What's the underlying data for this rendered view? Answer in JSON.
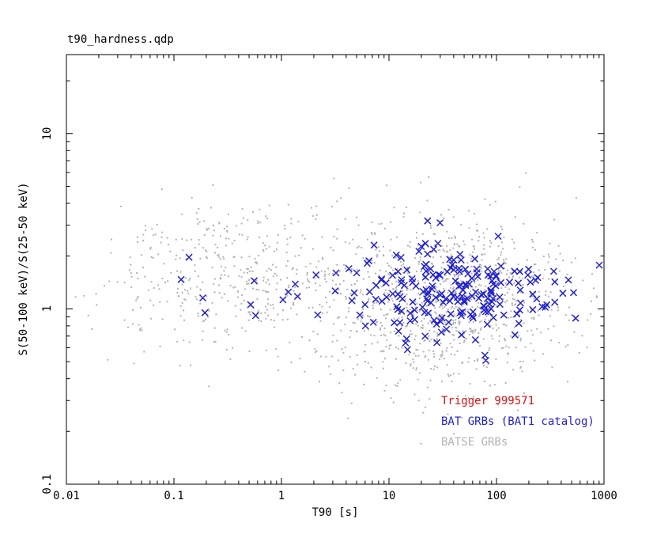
{
  "window": {
    "background": "#ffffff"
  },
  "chart_data": {
    "type": "scatter",
    "title": "t90_hardness.qdp",
    "xlabel": "T90 [s]",
    "ylabel": "S(50-100 keV)/S(25-50 keV)",
    "xscale": "log",
    "yscale": "log",
    "xlim": [
      0.01,
      1000
    ],
    "ylim": [
      0.1,
      28.2
    ],
    "x_ticks": [
      0.01,
      0.1,
      1,
      10,
      100,
      1000
    ],
    "x_tick_labels": [
      "0.01",
      "0.1",
      "1",
      "10",
      "100",
      "1000"
    ],
    "y_ticks": [
      0.1,
      1,
      10
    ],
    "y_tick_labels": [
      "0.1",
      "1",
      "10"
    ],
    "grid": false,
    "frame_color": "#000000",
    "legend_position": "lower-right-text-only",
    "legend": [
      {
        "label": "Trigger 999571",
        "color": "#dd1111"
      },
      {
        "label": "BAT GRBs (BAT1 catalog)",
        "color": "#2222cc"
      },
      {
        "label": "BATSE GRBs",
        "color": "#b3b3b3"
      }
    ],
    "series": [
      {
        "name": "BATSE GRBs",
        "color": "#b3b3b3",
        "marker": "dot",
        "marker_size": 2,
        "seed": 101,
        "clusters": [
          {
            "count": 420,
            "log10_t90_mean": -0.45,
            "log10_t90_sigma": 0.55,
            "log10_ratio_mean": 0.2,
            "log10_ratio_sigma": 0.22
          },
          {
            "count": 1050,
            "log10_t90_mean": 1.5,
            "log10_t90_sigma": 0.58,
            "log10_ratio_mean": 0.04,
            "log10_ratio_sigma": 0.25
          }
        ]
      },
      {
        "name": "BAT GRBs (BAT1 catalog)",
        "color": "#2222cc",
        "marker": "x",
        "marker_size": 8,
        "seed": 202,
        "clusters": [
          {
            "count": 12,
            "log10_t90_mean": -0.55,
            "log10_t90_sigma": 0.45,
            "log10_ratio_mean": 0.14,
            "log10_ratio_sigma": 0.1
          },
          {
            "count": 205,
            "log10_t90_mean": 1.55,
            "log10_t90_sigma": 0.52,
            "log10_ratio_mean": 0.1,
            "log10_ratio_sigma": 0.13
          }
        ]
      },
      {
        "name": "Trigger 999571",
        "color": "#dd1111",
        "marker": "x",
        "marker_size": 8,
        "points": []
      }
    ]
  }
}
